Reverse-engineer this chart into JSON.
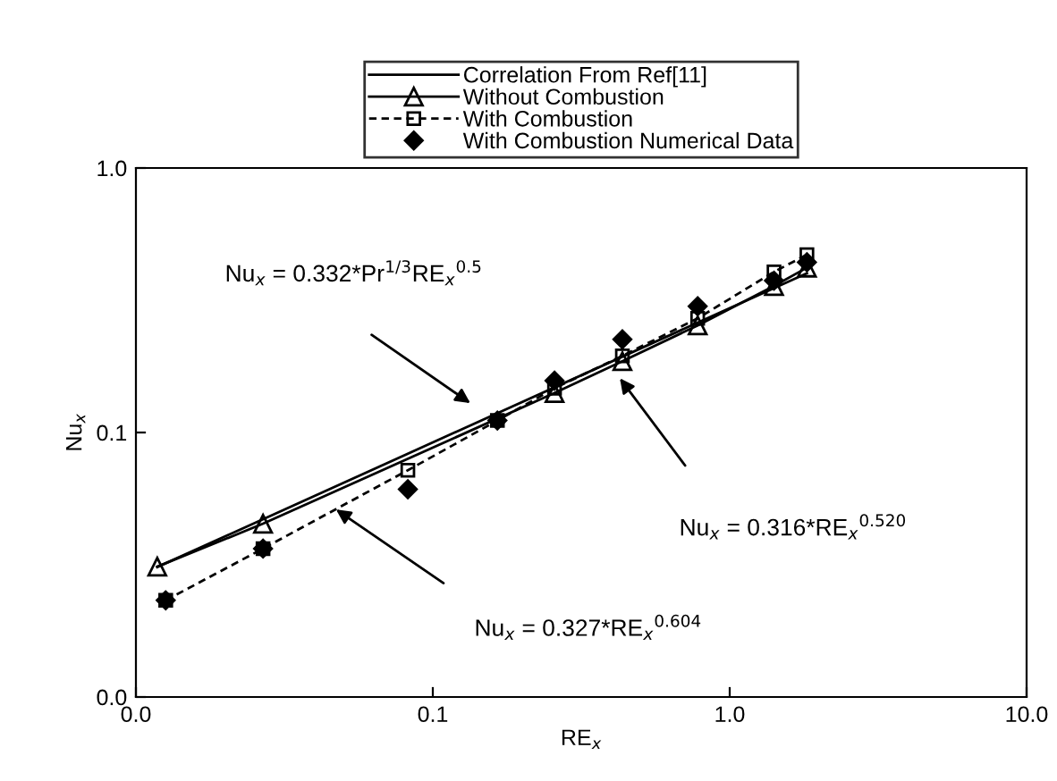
{
  "chart_data": {
    "type": "line",
    "xlabel": "RE$_{x}$",
    "ylabel": "Nu$_{x}$",
    "log": "xy",
    "grid": false,
    "legend": "top",
    "xlim": [
      0.01,
      10
    ],
    "xticks": [
      {
        "value": 0.01,
        "label": "0.0"
      },
      {
        "value": 0.1,
        "label": "0.1"
      },
      {
        "value": 1,
        "label": "1.0"
      },
      {
        "value": 10,
        "label": "10.0"
      }
    ],
    "ylim": [
      0.01,
      1
    ],
    "yticks": [
      {
        "value": 0.01,
        "label": "0.0"
      },
      {
        "value": 0.1,
        "label": "0.1"
      },
      {
        "value": 1,
        "label": "1.0"
      }
    ],
    "series": [
      {
        "name": "Correlation From Ref[11]",
        "color": "#000000",
        "marker": "none",
        "line_style": "solid",
        "x": [
          0.0118,
          1.82
        ],
        "values": [
          0.031,
          0.4
        ]
      },
      {
        "name": "Without Combustion",
        "color": "#000000",
        "marker": "triangle",
        "line_style": "solid",
        "x": [
          0.0118,
          0.0268,
          0.257,
          0.435,
          0.78,
          1.41,
          1.82
        ],
        "values": [
          0.0311,
          0.0452,
          0.141,
          0.186,
          0.254,
          0.358,
          0.42
        ]
      },
      {
        "name": "With Combustion",
        "color": "#000000",
        "marker": "square",
        "line_style": "dashed",
        "x": [
          0.0126,
          0.0268,
          0.0824,
          0.165,
          0.257,
          0.435,
          0.78,
          1.41,
          1.82
        ],
        "values": [
          0.0232,
          0.0364,
          0.072,
          0.111,
          0.147,
          0.195,
          0.27,
          0.405,
          0.47
        ]
      },
      {
        "name": "With Combustion Numerical Data",
        "color": "#000000",
        "type": "scatter",
        "marker": "diamond",
        "x": [
          0.0126,
          0.0268,
          0.0824,
          0.165,
          0.257,
          0.435,
          0.78,
          1.41,
          1.82
        ],
        "values": [
          0.0232,
          0.0364,
          0.061,
          0.111,
          0.157,
          0.225,
          0.3,
          0.375,
          0.44
        ]
      }
    ],
    "annotations": [
      "Nu$_{x}$ = 0.332*Pr$^{1/3}$RE$_{x}$$^{0.5}$",
      "Nu$_{x}$ = 0.316*RE$_{x}$$^{0.520}$",
      "Nu$_{x}$ = 0.327*RE$_{x}$$^{0.604}$"
    ]
  }
}
